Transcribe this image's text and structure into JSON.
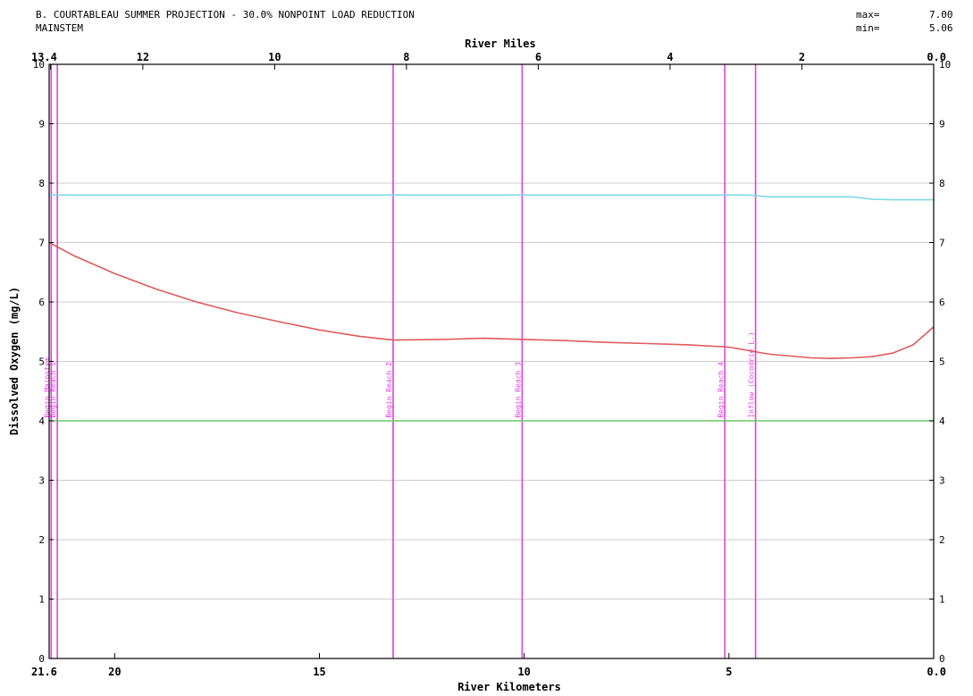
{
  "header": {
    "title": "B. COURTABLEAU SUMMER PROJECTION - 30.0% NONPOINT LOAD REDUCTION",
    "subtitle": "MAINSTEM",
    "max_label": "max=",
    "max_value": "7.00",
    "min_label": "min=",
    "min_value": "5.06"
  },
  "colors": {
    "do_curve": "#e05a5a",
    "saturation": "#7fd8e8",
    "standard": "#66cc66",
    "markers": "#e040e0",
    "grid": "#cccccc"
  },
  "chart_data": {
    "type": "line",
    "title": "B. COURTABLEAU SUMMER PROJECTION - 30.0% NONPOINT LOAD REDUCTION",
    "subtitle": "MAINSTEM",
    "xlabel": "River Kilometers",
    "x2label": "River Miles",
    "ylabel": "Dissolved Oxygen (mg/L)",
    "xlim": [
      21.6,
      0.0
    ],
    "ylim": [
      0,
      10
    ],
    "grid": true,
    "yticks": [
      0,
      1,
      2,
      3,
      4,
      5,
      6,
      7,
      8,
      9,
      10
    ],
    "xticks_km": [
      {
        "value": 21.6,
        "label": "21.6"
      },
      {
        "value": 20,
        "label": "20"
      },
      {
        "value": 15,
        "label": "15"
      },
      {
        "value": 10,
        "label": "10"
      },
      {
        "value": 5,
        "label": "5"
      },
      {
        "value": 0.0,
        "label": "0.0"
      }
    ],
    "xticks_mi": [
      {
        "value": 13.4,
        "label": "13.4"
      },
      {
        "value": 12,
        "label": "12"
      },
      {
        "value": 10,
        "label": "10"
      },
      {
        "value": 8,
        "label": "8"
      },
      {
        "value": 6,
        "label": "6"
      },
      {
        "value": 4,
        "label": "4"
      },
      {
        "value": 2,
        "label": "2"
      },
      {
        "value": 0.0,
        "label": "0.0"
      }
    ],
    "series": [
      {
        "key": "do",
        "x": [
          21.6,
          21.0,
          20.0,
          19.0,
          18.0,
          17.0,
          16.0,
          15.0,
          14.0,
          13.2,
          12.0,
          11.0,
          10.0,
          9.0,
          8.0,
          7.0,
          6.0,
          5.0,
          4.5,
          4.0,
          3.5,
          3.0,
          2.5,
          2.0,
          1.5,
          1.0,
          0.5,
          0.0
        ],
        "y": [
          7.0,
          6.78,
          6.48,
          6.22,
          6.0,
          5.82,
          5.67,
          5.53,
          5.42,
          5.36,
          5.37,
          5.39,
          5.37,
          5.35,
          5.32,
          5.3,
          5.28,
          5.24,
          5.18,
          5.12,
          5.09,
          5.06,
          5.05,
          5.06,
          5.08,
          5.14,
          5.28,
          5.58
        ]
      },
      {
        "key": "saturation",
        "x": [
          21.6,
          5.0,
          4.5,
          4.0,
          2.0,
          1.5,
          1.0,
          0.5,
          0.0
        ],
        "y": [
          7.8,
          7.8,
          7.8,
          7.77,
          7.77,
          7.73,
          7.72,
          7.72,
          7.72
        ]
      },
      {
        "key": "standard",
        "x": [
          21.6,
          0.0
        ],
        "y": [
          4.0,
          4.0
        ]
      }
    ],
    "markers": [
      {
        "x": 21.55,
        "label": "Begin Mainstem"
      },
      {
        "x": 21.4,
        "label": "Begin Reach 1"
      },
      {
        "x": 13.2,
        "label": "Begin Reach 2"
      },
      {
        "x": 10.05,
        "label": "Begin Reach 3"
      },
      {
        "x": 5.1,
        "label": "Begin Reach 4"
      },
      {
        "x": 4.35,
        "label": "Inflow (Cocodrie L.)"
      }
    ]
  }
}
